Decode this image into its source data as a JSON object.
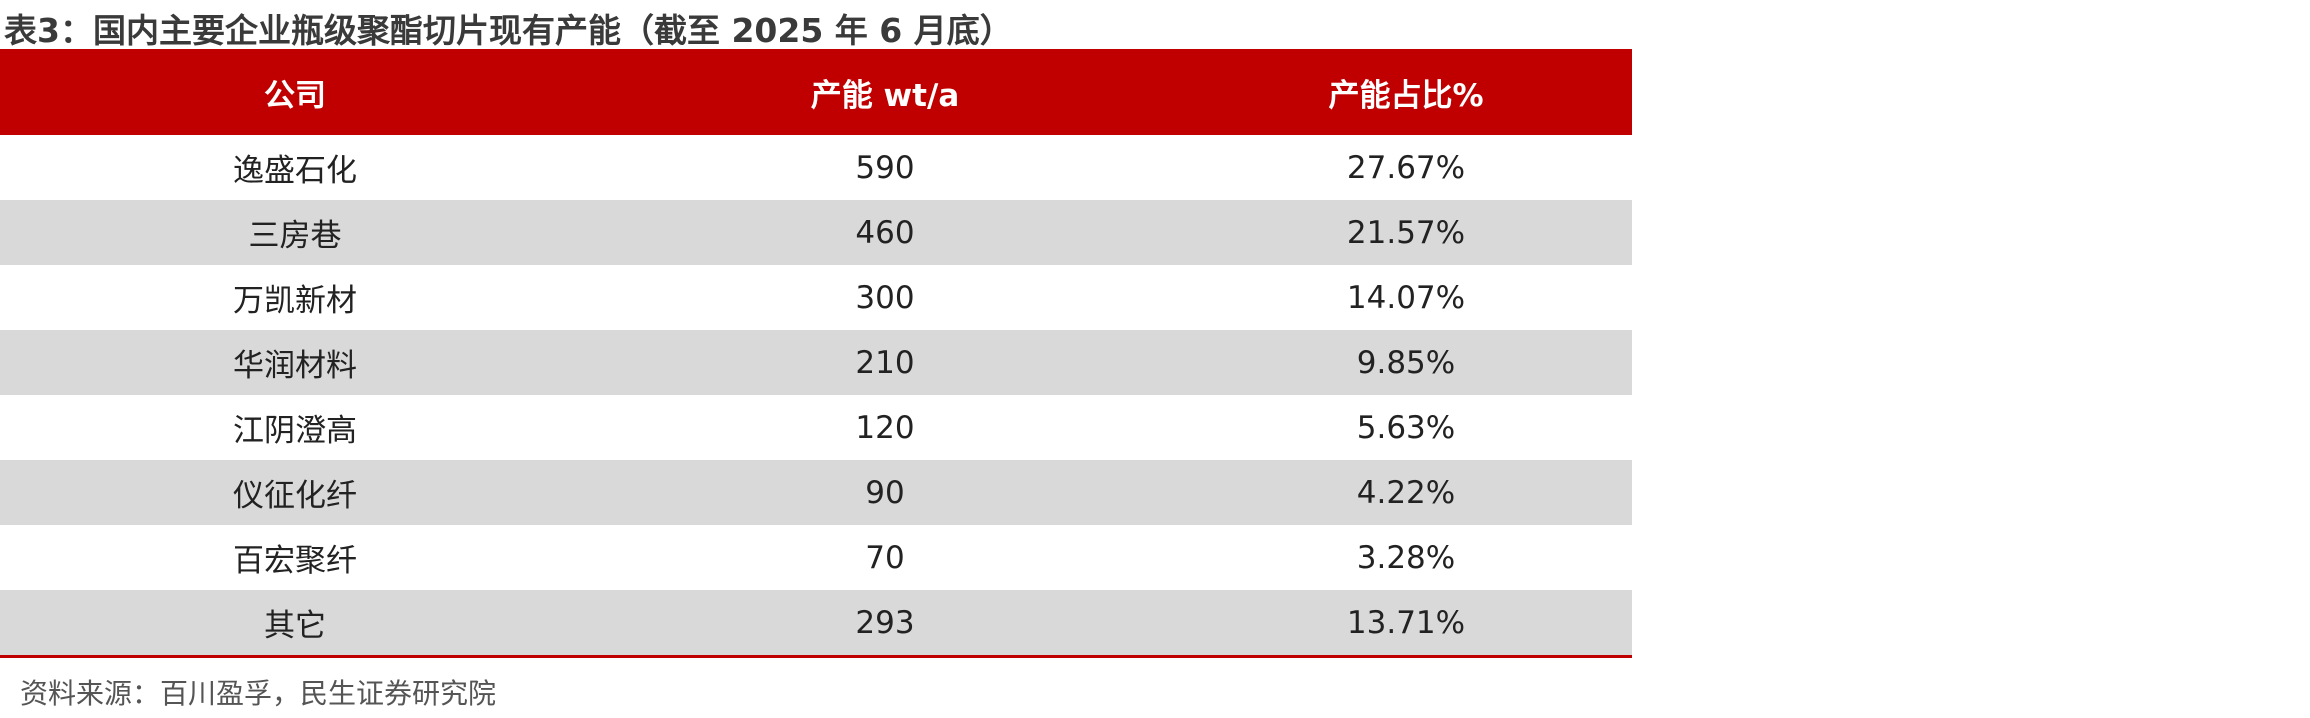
{
  "title": "表3：国内主要企业瓶级聚酯切片现有产能（截至 2025 年 6 月底）",
  "table": {
    "headers": [
      "公司",
      "产能 wt/a",
      "产能占比%"
    ],
    "rows": [
      [
        "逸盛石化",
        "590",
        "27.67%"
      ],
      [
        "三房巷",
        "460",
        "21.57%"
      ],
      [
        "万凯新材",
        "300",
        "14.07%"
      ],
      [
        "华润材料",
        "210",
        "9.85%"
      ],
      [
        "江阴澄高",
        "120",
        "5.63%"
      ],
      [
        "仪征化纤",
        "90",
        "4.22%"
      ],
      [
        "百宏聚纤",
        "70",
        "3.28%"
      ],
      [
        "其它",
        "293",
        "13.71%"
      ]
    ]
  },
  "source": "资料来源：百川盈孚，民生证券研究院"
}
